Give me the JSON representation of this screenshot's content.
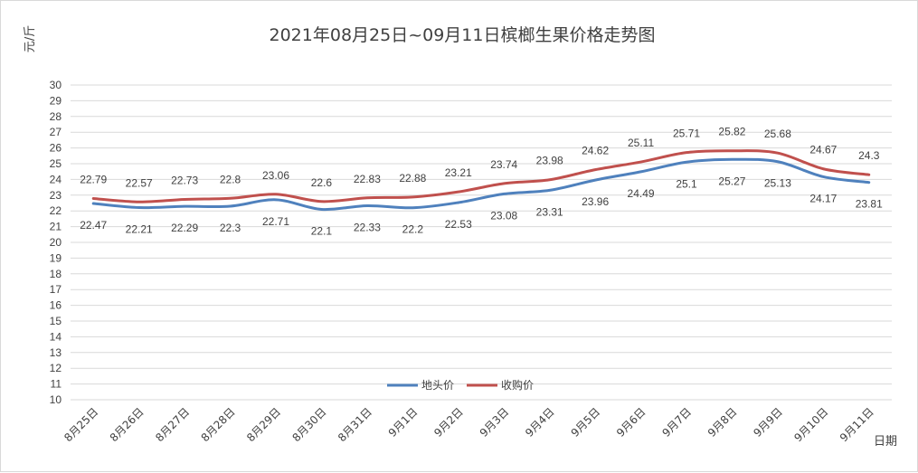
{
  "chart_data": {
    "type": "line",
    "title": "2021年08月25日~09月11日槟榔生果价格走势图",
    "ylabel": "元/斤",
    "xlabel": "日期",
    "ylim": [
      10,
      30
    ],
    "yticks": [
      10,
      11,
      12,
      13,
      14,
      15,
      16,
      17,
      18,
      19,
      20,
      21,
      22,
      23,
      24,
      25,
      26,
      27,
      28,
      29,
      30
    ],
    "grid": true,
    "legend_position": "bottom-center",
    "categories": [
      "8月25日",
      "8月26日",
      "8月27日",
      "8月28日",
      "8月29日",
      "8月30日",
      "8月31日",
      "9月1日",
      "9月2日",
      "9月3日",
      "9月4日",
      "9月5日",
      "9月6日",
      "9月7日",
      "9月8日",
      "9月9日",
      "9月10日",
      "9月11日"
    ],
    "series": [
      {
        "name": "地头价",
        "color": "#4f81bd",
        "label_position": "below",
        "values": [
          22.47,
          22.21,
          22.29,
          22.3,
          22.71,
          22.1,
          22.33,
          22.2,
          22.53,
          23.08,
          23.31,
          23.96,
          24.49,
          25.1,
          25.27,
          25.13,
          24.17,
          23.81
        ]
      },
      {
        "name": "收购价",
        "color": "#c0504d",
        "label_position": "above",
        "values": [
          22.79,
          22.57,
          22.73,
          22.8,
          23.06,
          22.6,
          22.83,
          22.88,
          23.21,
          23.74,
          23.98,
          24.62,
          25.11,
          25.71,
          25.82,
          25.68,
          24.67,
          24.3
        ]
      }
    ]
  }
}
